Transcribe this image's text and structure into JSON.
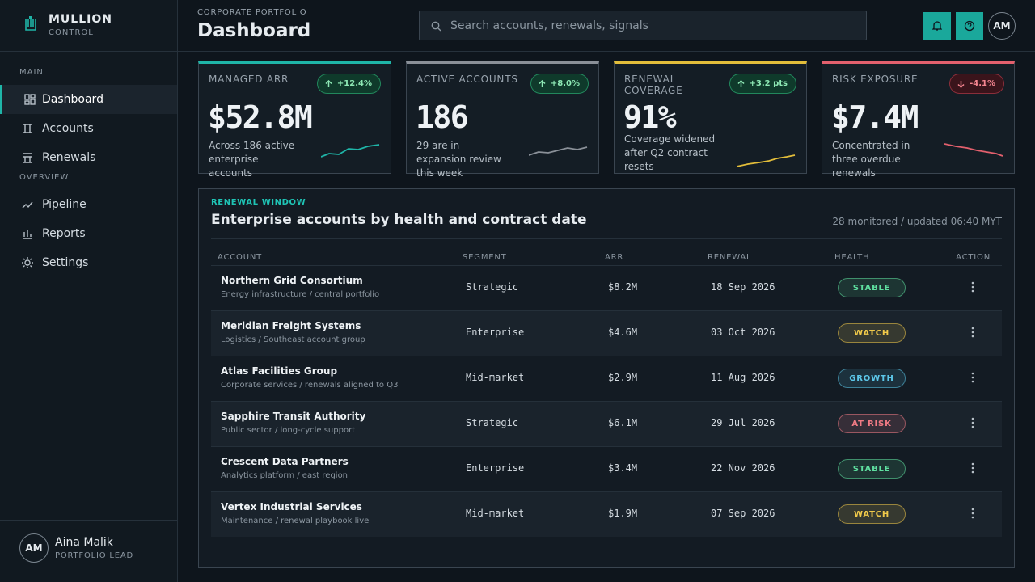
{
  "brand": {
    "name": "MULLION",
    "sub": "CONTROL"
  },
  "nav": [
    {
      "title": "MAIN",
      "items": [
        "Dashboard",
        "Accounts",
        "Renewals"
      ]
    },
    {
      "title": "OVERVIEW",
      "items": [
        "Pipeline",
        "Reports",
        "Settings"
      ]
    }
  ],
  "user": {
    "initials": "AM",
    "name": "Aina Malik",
    "role": "PORTFOLIO LEAD"
  },
  "header": {
    "eyebrow": "CORPORATE PORTFOLIO",
    "title": "Dashboard",
    "search_placeholder": "Search accounts, renewals, signals",
    "avatar": "AM"
  },
  "kpis": [
    {
      "label": "MANAGED ARR",
      "delta": "+12.4%",
      "value": "$52.8M",
      "note": "Across 186 active enterprise accounts",
      "color": "#1fb5a8"
    },
    {
      "label": "ACTIVE ACCOUNTS",
      "delta": "+8.0%",
      "value": "186",
      "note": "29 are in expansion review this week",
      "color": "#8a9098"
    },
    {
      "label": "RENEWAL COVERAGE",
      "delta": "+3.2 pts",
      "value": "91%",
      "note": "Coverage widened after Q2 contract resets",
      "color": "#e2bd3a"
    },
    {
      "label": "RISK EXPOSURE",
      "delta": "-4.1%",
      "value": "$7.4M",
      "note": "Concentrated in three overdue renewals",
      "color": "#e3606d"
    }
  ],
  "table": {
    "eyebrow": "RENEWAL WINDOW",
    "title": "Enterprise accounts by health and contract date",
    "meta": "28 monitored / updated 06:40 MYT",
    "columns": [
      "ACCOUNT",
      "SEGMENT",
      "ARR",
      "RENEWAL",
      "HEALTH",
      "ACTION"
    ],
    "rows": [
      {
        "account": "Northern Grid Consortium",
        "detail": "Energy infrastructure / central portfolio",
        "segment": "Strategic",
        "arr": "$8.2M",
        "renewal": "18 Sep 2026",
        "health": "STABLE",
        "health_color": "#5fe0a0"
      },
      {
        "account": "Meridian Freight Systems",
        "detail": "Logistics / Southeast account group",
        "segment": "Enterprise",
        "arr": "$4.6M",
        "renewal": "03 Oct 2026",
        "health": "WATCH",
        "health_color": "#f0c94a"
      },
      {
        "account": "Atlas Facilities Group",
        "detail": "Corporate services / renewals aligned to Q3",
        "segment": "Mid-market",
        "arr": "$2.9M",
        "renewal": "11 Aug 2026",
        "health": "GROWTH",
        "health_color": "#5cc6e8"
      },
      {
        "account": "Sapphire Transit Authority",
        "detail": "Public sector / long-cycle support",
        "segment": "Strategic",
        "arr": "$6.1M",
        "renewal": "29 Jul 2026",
        "health": "AT RISK",
        "health_color": "#f27b85"
      },
      {
        "account": "Crescent Data Partners",
        "detail": "Analytics platform / east region",
        "segment": "Enterprise",
        "arr": "$3.4M",
        "renewal": "22 Nov 2026",
        "health": "STABLE",
        "health_color": "#5fe0a0"
      },
      {
        "account": "Vertex Industrial Services",
        "detail": "Maintenance / renewal playbook live",
        "segment": "Mid-market",
        "arr": "$1.9M",
        "renewal": "07 Sep 2026",
        "health": "WATCH",
        "health_color": "#f0c94a"
      }
    ]
  }
}
